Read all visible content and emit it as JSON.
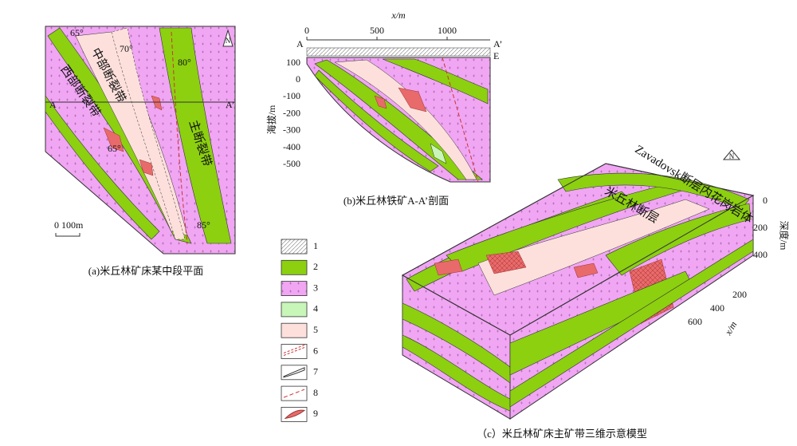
{
  "panel_a": {
    "caption": "(a)米丘林矿床某中段平面",
    "zones": [
      "中部断裂带",
      "西部断裂带",
      "主断裂带"
    ],
    "dips": [
      "65°",
      "70°",
      "80°",
      "65°",
      "85°"
    ],
    "section_ends": [
      "A",
      "A’"
    ],
    "scale": "0  100m",
    "north": "N"
  },
  "panel_b": {
    "caption": "(b)米丘林铁矿A-A’剖面",
    "x_label": "x/m",
    "x_ticks": [
      "0",
      "500",
      "1000"
    ],
    "y_label": "海拔/m",
    "y_ticks": [
      "100",
      "0",
      "-100",
      "-200",
      "-300",
      "-400",
      "-500"
    ],
    "ends": [
      "A",
      "A’",
      "E"
    ]
  },
  "panel_c": {
    "caption": "（c）米丘林矿床主矿带三维示意模型",
    "labels": [
      "Zavadovsk断层内花岗岩体",
      "米丘林断层"
    ],
    "depth_label": "深度/m",
    "depth_ticks": [
      "0",
      "200",
      "400"
    ],
    "x_label": "x/m",
    "x_ticks": [
      "200",
      "400",
      "600"
    ],
    "north": "N"
  },
  "legend": [
    "1",
    "2",
    "3",
    "4",
    "5",
    "6",
    "7",
    "8",
    "9"
  ]
}
